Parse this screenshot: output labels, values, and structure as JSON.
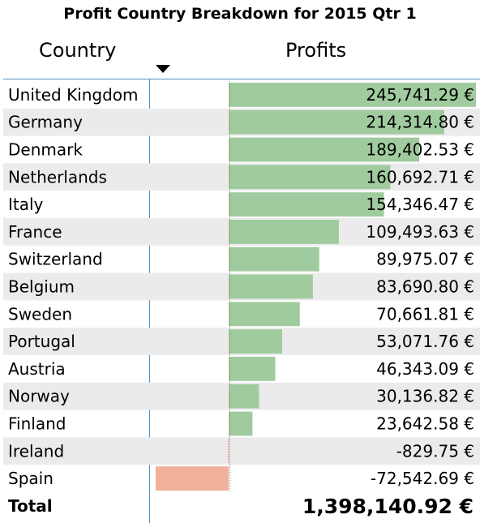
{
  "title": "Profit Country Breakdown for 2015 Qtr 1",
  "headers": {
    "country": "Country",
    "profits": "Profits"
  },
  "sort_icon": "sort-descending-icon",
  "colors": {
    "positive": "#a0cb9e",
    "negative": "#f0b09a",
    "stripe": "#ebebeb",
    "divider": "#4a90c8"
  },
  "total": {
    "label": "Total",
    "value": "1,398,140.92 €"
  },
  "chart_data": {
    "type": "bar",
    "orientation": "horizontal",
    "title": "Profit Country Breakdown for 2015 Qtr 1",
    "xlabel": "Profits",
    "ylabel": "Country",
    "currency": "€",
    "categories": [
      "United Kingdom",
      "Germany",
      "Denmark",
      "Netherlands",
      "Italy",
      "France",
      "Switzerland",
      "Belgium",
      "Sweden",
      "Portugal",
      "Austria",
      "Norway",
      "Finland",
      "Ireland",
      "Spain"
    ],
    "values": [
      245741.29,
      214314.8,
      189402.53,
      160692.71,
      154346.47,
      109493.63,
      89975.07,
      83690.8,
      70661.81,
      53071.76,
      46343.09,
      30136.82,
      23642.58,
      -829.75,
      -72542.69
    ],
    "labels": [
      "245,741.29 €",
      "214,314.80 €",
      "189,402.53 €",
      "160,692.71 €",
      "154,346.47 €",
      "109,493.63 €",
      "89,975.07 €",
      "83,690.80 €",
      "70,661.81 €",
      "53,071.76 €",
      "46,343.09 €",
      "30,136.82 €",
      "23,642.58 €",
      "-829.75 €",
      "-72,542.69 €"
    ],
    "xlim": [
      -72542.69,
      245741.29
    ]
  }
}
